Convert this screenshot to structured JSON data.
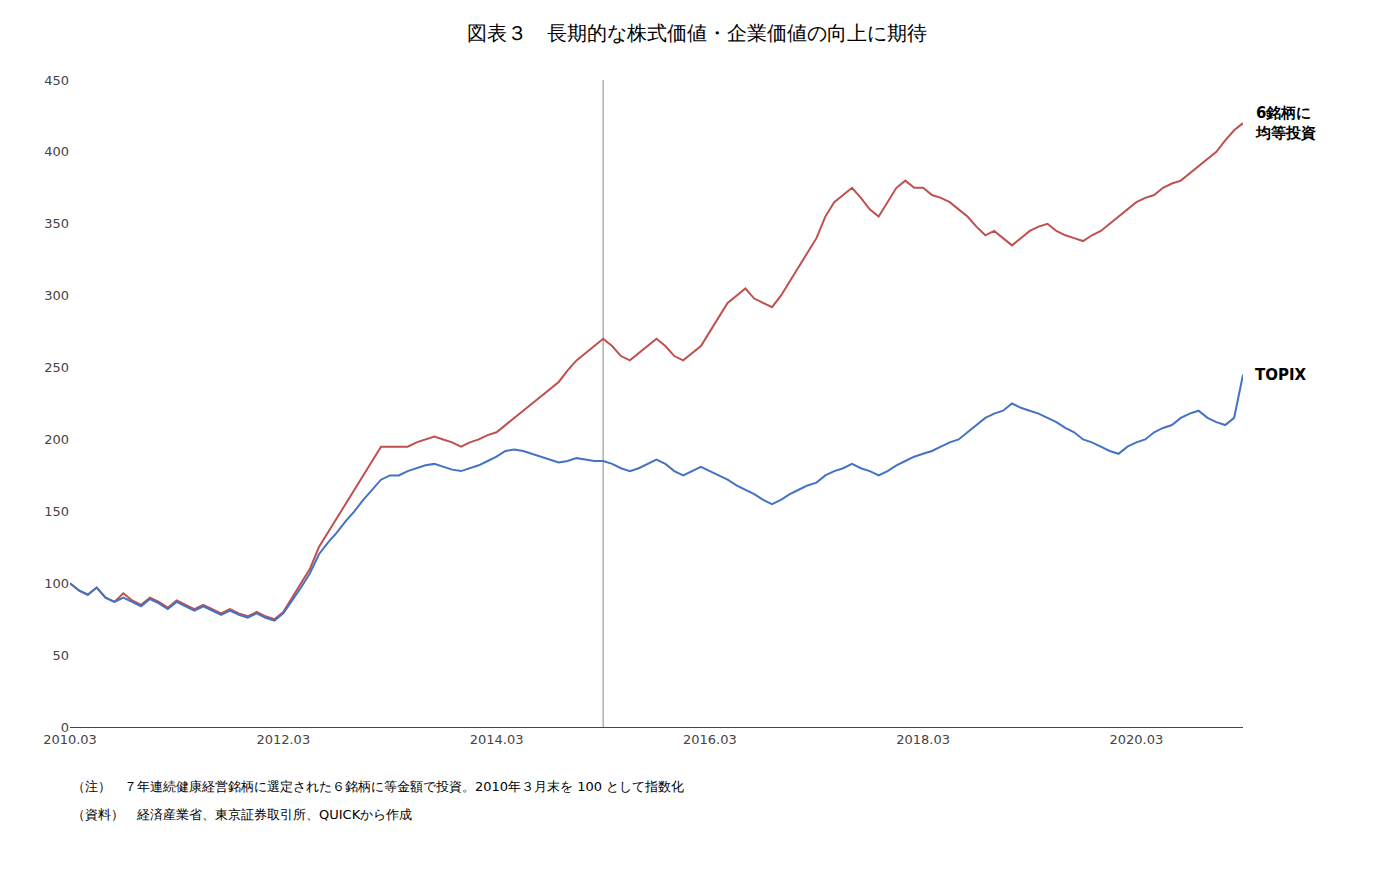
{
  "chart_data": {
    "type": "line",
    "title": "図表３　長期的な株式価値・企業価値の向上に期待",
    "annotations": [
      "（注）　７年連続健康経営銘柄に選定された６銘柄に等金額で投資。2010年３月末を 100 として指数化",
      "（資料）　経済産業省、東京証券取引所、QUICKから作成"
    ],
    "categories": [
      "2010.03",
      null,
      null,
      null,
      null,
      null,
      null,
      null,
      null,
      null,
      null,
      null,
      null,
      null,
      null,
      null,
      null,
      null,
      null,
      null,
      null,
      null,
      null,
      null,
      "2012.03",
      null,
      null,
      null,
      null,
      null,
      null,
      null,
      null,
      null,
      null,
      null,
      null,
      null,
      null,
      null,
      null,
      null,
      null,
      null,
      null,
      null,
      null,
      null,
      "2014.03",
      null,
      null,
      null,
      null,
      null,
      null,
      null,
      null,
      null,
      null,
      null,
      null,
      null,
      null,
      null,
      null,
      null,
      null,
      null,
      null,
      null,
      null,
      null,
      "2016.03",
      null,
      null,
      null,
      null,
      null,
      null,
      null,
      null,
      null,
      null,
      null,
      null,
      null,
      null,
      null,
      null,
      null,
      null,
      null,
      null,
      null,
      null,
      null,
      "2018.03",
      null,
      null,
      null,
      null,
      null,
      null,
      null,
      null,
      null,
      null,
      null,
      null,
      null,
      null,
      null,
      null,
      null,
      null,
      null,
      null,
      null,
      null,
      null,
      "2020.03",
      null,
      null,
      null,
      null,
      null,
      null,
      null,
      null,
      null,
      null,
      null,
      null
    ],
    "series": [
      {
        "name": "6銘柄に\n均等投資",
        "color": "#c0504d",
        "values": [
          100,
          95,
          92,
          97,
          90,
          87,
          93,
          88,
          85,
          90,
          87,
          83,
          88,
          85,
          82,
          85,
          82,
          79,
          82,
          79,
          77,
          80,
          77,
          75,
          80,
          90,
          100,
          110,
          125,
          135,
          145,
          155,
          165,
          175,
          185,
          195,
          195,
          195,
          195,
          198,
          200,
          202,
          200,
          198,
          195,
          198,
          200,
          203,
          205,
          210,
          215,
          220,
          225,
          230,
          235,
          240,
          248,
          255,
          260,
          265,
          270,
          265,
          258,
          255,
          260,
          265,
          270,
          265,
          258,
          255,
          260,
          265,
          275,
          285,
          295,
          300,
          305,
          298,
          295,
          292,
          300,
          310,
          320,
          330,
          340,
          355,
          365,
          370,
          375,
          368,
          360,
          355,
          365,
          375,
          380,
          375,
          375,
          370,
          368,
          365,
          360,
          355,
          348,
          342,
          345,
          340,
          335,
          340,
          345,
          348,
          350,
          345,
          342,
          340,
          338,
          342,
          345,
          350,
          355,
          360,
          365,
          368,
          370,
          375,
          378,
          380,
          385,
          390,
          395,
          400,
          408,
          415,
          420
        ]
      },
      {
        "name": "TOPIX",
        "color": "#4472c4",
        "values": [
          100,
          95,
          92,
          97,
          90,
          87,
          90,
          87,
          84,
          89,
          86,
          82,
          87,
          84,
          81,
          84,
          81,
          78,
          81,
          78,
          76,
          79,
          76,
          74,
          79,
          88,
          97,
          107,
          120,
          128,
          135,
          143,
          150,
          158,
          165,
          172,
          175,
          175,
          178,
          180,
          182,
          183,
          181,
          179,
          178,
          180,
          182,
          185,
          188,
          192,
          193,
          192,
          190,
          188,
          186,
          184,
          185,
          187,
          186,
          185,
          185,
          183,
          180,
          178,
          180,
          183,
          186,
          183,
          178,
          175,
          178,
          181,
          178,
          175,
          172,
          168,
          165,
          162,
          158,
          155,
          158,
          162,
          165,
          168,
          170,
          175,
          178,
          180,
          183,
          180,
          178,
          175,
          178,
          182,
          185,
          188,
          190,
          192,
          195,
          198,
          200,
          205,
          210,
          215,
          218,
          220,
          225,
          222,
          220,
          218,
          215,
          212,
          208,
          205,
          200,
          198,
          195,
          192,
          190,
          195,
          198,
          200,
          205,
          208,
          210,
          215,
          218,
          220,
          215,
          212,
          210,
          215,
          245
        ]
      }
    ],
    "vline": {
      "x": 60,
      "color": "#b0b0b0"
    },
    "ylim": [
      0,
      450
    ],
    "yticks": [
      0,
      50,
      100,
      150,
      200,
      250,
      300,
      350,
      400,
      450
    ],
    "grid": false
  }
}
